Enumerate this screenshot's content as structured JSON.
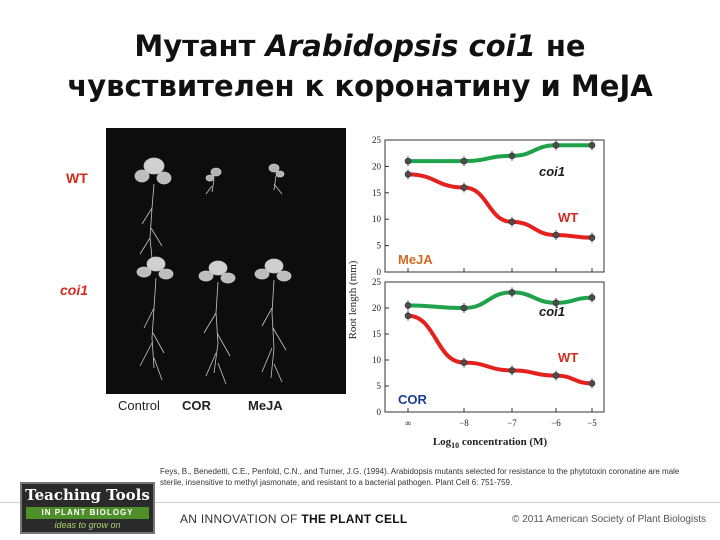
{
  "title": {
    "part1": "Мутант ",
    "italic": "Arabidopsis coi1",
    "part2": " не",
    "line2": "чувствителен к коронатину и MeJA"
  },
  "photo": {
    "labels": {
      "control": "Control",
      "cor": "COR",
      "meja": "MeJA"
    },
    "side_labels": {
      "wt": "WT",
      "coi1": "coi1"
    }
  },
  "graph": {
    "y_axis_label": "Root length (mm)",
    "x_axis_label_prefix": "Log",
    "x_axis_label_sub": "10",
    "x_axis_label_suffix": " concentration (M)",
    "y_ticks": [
      "25",
      "20",
      "15",
      "10",
      "5",
      "0"
    ],
    "x_ticks": [
      "∞",
      "−8",
      "−7",
      "−6",
      "−5"
    ],
    "top_panel": {
      "treatment": "MeJA",
      "coi1_label": "coi1",
      "wt_label": "WT"
    },
    "bottom_panel": {
      "treatment": "COR",
      "coi1_label": "coi1",
      "wt_label": "WT"
    }
  },
  "chart_data": [
    {
      "type": "line",
      "title": "",
      "xlabel": "Log10 concentration (M)",
      "ylabel": "Root length (mm)",
      "categories": [
        "∞",
        "−8",
        "−7",
        "−6",
        "−5"
      ],
      "ylim": [
        0,
        25
      ],
      "annotation": "MeJA",
      "series": [
        {
          "name": "coi1",
          "color": "#1fa34a",
          "values": [
            21,
            21,
            22,
            24,
            24
          ]
        },
        {
          "name": "WT",
          "color": "#e4211c",
          "values": [
            18.5,
            16,
            9.5,
            7,
            6.5
          ]
        }
      ]
    },
    {
      "type": "line",
      "title": "",
      "xlabel": "Log10 concentration (M)",
      "ylabel": "Root length (mm)",
      "categories": [
        "∞",
        "−8",
        "−7",
        "−6",
        "−5"
      ],
      "ylim": [
        0,
        25
      ],
      "annotation": "COR",
      "series": [
        {
          "name": "coi1",
          "color": "#1fa34a",
          "values": [
            20.5,
            20,
            23,
            21,
            22
          ]
        },
        {
          "name": "WT",
          "color": "#e4211c",
          "values": [
            18.5,
            9.5,
            8,
            7,
            5.5
          ]
        }
      ]
    }
  ],
  "citation": "Feys, B., Benedetti, C.E., Penfold, C.N., and Turner, J.G. (1994). Arabidopsis mutants selected for resistance to the phytotoxin coronatine are male sterile, insensitive to methyl jasmonate, and resistant to a bacterial pathogen. Plant Cell 6: 751-759.",
  "footer": {
    "logo_line1": "Teaching Tools",
    "logo_line2": "IN PLANT BIOLOGY",
    "logo_line3": "ideas to grow on",
    "innovation_prefix": "AN INNOVATION OF ",
    "innovation_bold": "THE PLANT CELL",
    "copyright": "© 2011 American Society of Plant Biologists"
  }
}
